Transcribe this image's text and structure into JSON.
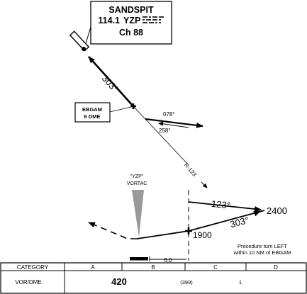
{
  "navaid_box": {
    "name": "SANDSPIT",
    "frequency": "114.1",
    "ident": "YZP",
    "channel": "Ch 88"
  },
  "fix": {
    "name": "EBGAM",
    "distance": "6 DME"
  },
  "courses": {
    "inbound_upper": "303°",
    "proc_out": "078°",
    "proc_in": "258°",
    "radial": "R-123",
    "profile_out": "123°",
    "profile_in": "303°"
  },
  "altitudes": {
    "procedure_turn": "2400",
    "fix": "1900"
  },
  "vortac_label": {
    "ident": "\"YZP\"",
    "type": "VORTAC"
  },
  "distance_label": "6.0",
  "note": {
    "line1": "Procedure turn LEFT",
    "line2": "within 10 NM of EBGAM"
  },
  "minimums": {
    "header": "CATEGORY",
    "categories": [
      "A",
      "B",
      "C",
      "D"
    ],
    "row_label": "VOR/DME",
    "mda": "420",
    "hat": "(399)",
    "visibility": "1"
  },
  "colors": {
    "ink": "#000000",
    "vortac_beam": "#9a9a9a",
    "background": "#ffffff"
  }
}
